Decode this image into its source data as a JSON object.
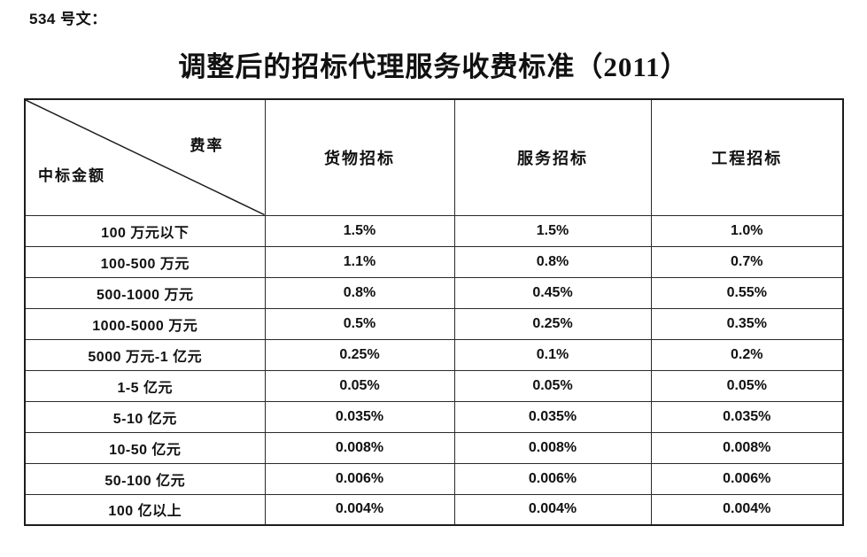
{
  "doc": {
    "label": "534 号文：",
    "title": "调整后的招标代理服务收费标准（2011）"
  },
  "table": {
    "corner": {
      "top_right": "费率",
      "bottom_left": "中标金额"
    },
    "columns": [
      "货物招标",
      "服务招标",
      "工程招标"
    ],
    "rows": [
      {
        "amount": "100 万元以下",
        "values": [
          "1.5%",
          "1.5%",
          "1.0%"
        ]
      },
      {
        "amount": "100-500 万元",
        "values": [
          "1.1%",
          "0.8%",
          "0.7%"
        ]
      },
      {
        "amount": "500-1000 万元",
        "values": [
          "0.8%",
          "0.45%",
          "0.55%"
        ]
      },
      {
        "amount": "1000-5000 万元",
        "values": [
          "0.5%",
          "0.25%",
          "0.35%"
        ]
      },
      {
        "amount": "5000 万元-1 亿元",
        "values": [
          "0.25%",
          "0.1%",
          "0.2%"
        ]
      },
      {
        "amount": "1-5 亿元",
        "values": [
          "0.05%",
          "0.05%",
          "0.05%"
        ]
      },
      {
        "amount": "5-10 亿元",
        "values": [
          "0.035%",
          "0.035%",
          "0.035%"
        ]
      },
      {
        "amount": "10-50 亿元",
        "values": [
          "0.008%",
          "0.008%",
          "0.008%"
        ]
      },
      {
        "amount": "50-100 亿元",
        "values": [
          "0.006%",
          "0.006%",
          "0.006%"
        ]
      },
      {
        "amount": "100 亿以上",
        "values": [
          "0.004%",
          "0.004%",
          "0.004%"
        ]
      }
    ],
    "colors": {
      "text": "#111111",
      "border": "#1c1c1c",
      "background": "#ffffff"
    }
  }
}
